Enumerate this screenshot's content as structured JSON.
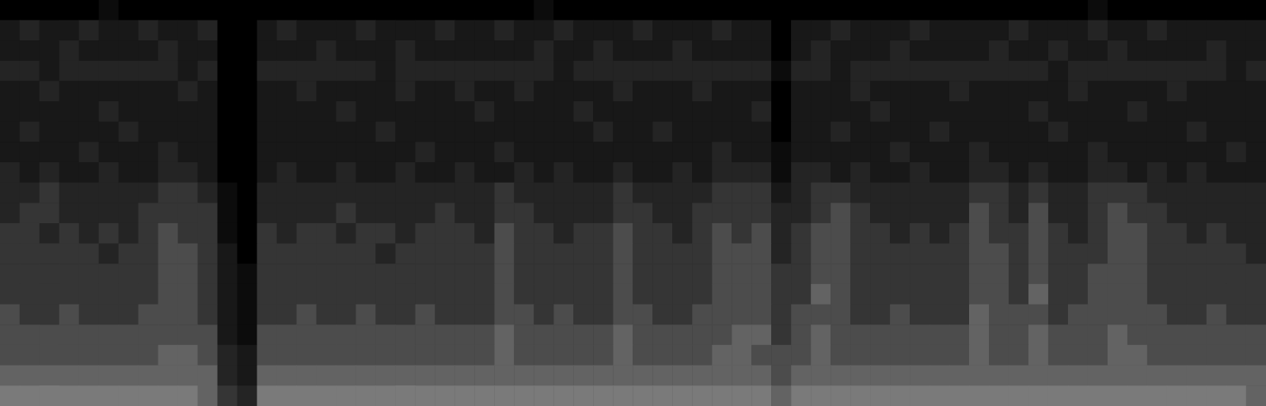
{
  "chart_data": {
    "type": "heatmap",
    "tick_labels": false,
    "cells": [
      [
        0,
        0,
        0,
        0,
        0,
        1,
        0,
        0,
        0,
        0,
        0,
        0,
        0,
        0,
        0,
        0,
        0,
        0,
        0,
        0,
        0,
        0,
        0,
        0,
        0,
        0,
        0,
        1,
        0,
        0,
        0,
        0,
        0,
        0,
        0,
        0,
        0,
        0,
        0,
        0,
        0,
        0,
        0,
        0,
        0,
        0,
        0,
        0,
        0,
        0,
        0,
        0,
        0,
        0,
        0,
        1,
        0,
        0,
        0,
        0,
        0,
        0,
        0,
        0
      ],
      [
        2,
        3,
        2,
        2,
        3,
        2,
        2,
        3,
        2,
        2,
        3,
        0,
        0,
        2,
        3,
        2,
        2,
        2,
        3,
        2,
        2,
        2,
        3,
        2,
        2,
        3,
        2,
        2,
        3,
        2,
        2,
        2,
        3,
        2,
        2,
        2,
        3,
        2,
        2,
        0,
        2,
        2,
        3,
        2,
        2,
        2,
        3,
        2,
        2,
        2,
        2,
        3,
        2,
        2,
        2,
        3,
        2,
        2,
        3,
        2,
        2,
        2,
        2,
        2
      ],
      [
        2,
        2,
        2,
        3,
        2,
        2,
        2,
        2,
        3,
        2,
        2,
        0,
        0,
        2,
        2,
        2,
        3,
        2,
        2,
        2,
        3,
        2,
        2,
        2,
        2,
        2,
        2,
        3,
        2,
        2,
        3,
        2,
        2,
        2,
        3,
        2,
        2,
        2,
        2,
        0,
        2,
        3,
        2,
        2,
        2,
        3,
        2,
        2,
        2,
        2,
        3,
        2,
        2,
        3,
        2,
        2,
        3,
        2,
        2,
        2,
        2,
        3,
        2,
        2
      ],
      [
        3,
        3,
        2,
        3,
        3,
        3,
        3,
        3,
        3,
        2,
        3,
        0,
        0,
        3,
        3,
        3,
        3,
        3,
        3,
        2,
        3,
        3,
        3,
        3,
        3,
        3,
        3,
        3,
        2,
        3,
        3,
        3,
        3,
        3,
        3,
        3,
        3,
        3,
        3,
        1,
        3,
        3,
        2,
        3,
        3,
        3,
        3,
        3,
        3,
        3,
        3,
        3,
        3,
        2,
        3,
        3,
        3,
        3,
        3,
        3,
        3,
        3,
        2,
        3
      ],
      [
        2,
        2,
        3,
        2,
        2,
        2,
        2,
        2,
        2,
        3,
        2,
        0,
        0,
        2,
        2,
        3,
        2,
        2,
        2,
        2,
        3,
        2,
        2,
        3,
        2,
        2,
        3,
        2,
        2,
        2,
        2,
        3,
        2,
        2,
        2,
        3,
        2,
        2,
        2,
        0,
        2,
        2,
        2,
        3,
        2,
        2,
        2,
        2,
        3,
        2,
        2,
        2,
        2,
        2,
        3,
        2,
        2,
        2,
        2,
        3,
        2,
        2,
        2,
        2
      ],
      [
        2,
        2,
        2,
        2,
        2,
        3,
        2,
        2,
        2,
        2,
        2,
        0,
        0,
        2,
        2,
        2,
        2,
        3,
        2,
        2,
        2,
        2,
        2,
        2,
        3,
        2,
        2,
        2,
        2,
        3,
        2,
        2,
        2,
        2,
        2,
        2,
        2,
        2,
        3,
        0,
        2,
        2,
        2,
        2,
        3,
        2,
        2,
        2,
        2,
        2,
        2,
        2,
        3,
        2,
        2,
        2,
        2,
        3,
        2,
        2,
        2,
        2,
        2,
        2
      ],
      [
        2,
        3,
        2,
        2,
        2,
        2,
        3,
        2,
        2,
        2,
        2,
        0,
        0,
        2,
        2,
        2,
        2,
        2,
        2,
        3,
        2,
        2,
        2,
        2,
        2,
        2,
        2,
        2,
        2,
        2,
        3,
        2,
        2,
        3,
        2,
        2,
        2,
        2,
        2,
        0,
        2,
        2,
        3,
        2,
        2,
        2,
        2,
        3,
        2,
        2,
        2,
        2,
        2,
        3,
        2,
        2,
        2,
        2,
        2,
        2,
        3,
        2,
        2,
        2
      ],
      [
        2,
        2,
        2,
        2,
        3,
        2,
        2,
        2,
        3,
        2,
        2,
        0,
        0,
        2,
        2,
        2,
        2,
        2,
        2,
        2,
        2,
        3,
        2,
        2,
        2,
        3,
        2,
        2,
        2,
        2,
        2,
        2,
        2,
        2,
        2,
        2,
        3,
        2,
        2,
        1,
        2,
        2,
        2,
        2,
        2,
        3,
        2,
        2,
        2,
        3,
        2,
        2,
        2,
        2,
        2,
        3,
        2,
        2,
        2,
        2,
        2,
        2,
        3,
        2
      ],
      [
        3,
        2,
        3,
        2,
        2,
        3,
        2,
        2,
        3,
        3,
        2,
        0,
        0,
        2,
        3,
        2,
        2,
        3,
        2,
        2,
        3,
        2,
        2,
        3,
        2,
        2,
        3,
        2,
        3,
        2,
        2,
        3,
        2,
        2,
        3,
        2,
        3,
        3,
        3,
        1,
        3,
        3,
        2,
        3,
        2,
        2,
        3,
        2,
        2,
        3,
        3,
        2,
        3,
        2,
        2,
        3,
        3,
        2,
        3,
        2,
        3,
        2,
        2,
        2
      ],
      [
        3,
        3,
        4,
        3,
        3,
        3,
        3,
        3,
        4,
        4,
        3,
        1,
        0,
        3,
        3,
        3,
        3,
        3,
        3,
        3,
        3,
        3,
        3,
        3,
        3,
        4,
        3,
        3,
        3,
        3,
        3,
        4,
        3,
        3,
        3,
        3,
        4,
        4,
        4,
        2,
        3,
        4,
        4,
        3,
        3,
        3,
        3,
        3,
        3,
        4,
        4,
        3,
        4,
        3,
        3,
        4,
        4,
        4,
        3,
        3,
        3,
        3,
        3,
        3
      ],
      [
        3,
        4,
        4,
        3,
        3,
        3,
        3,
        4,
        4,
        4,
        4,
        1,
        0,
        3,
        3,
        3,
        3,
        4,
        3,
        3,
        3,
        3,
        4,
        3,
        3,
        4,
        4,
        3,
        3,
        3,
        3,
        4,
        4,
        3,
        3,
        4,
        4,
        4,
        4,
        3,
        3,
        4,
        5,
        4,
        3,
        3,
        3,
        3,
        3,
        5,
        4,
        3,
        5,
        3,
        3,
        4,
        5,
        4,
        4,
        3,
        3,
        3,
        3,
        3
      ],
      [
        4,
        4,
        3,
        4,
        3,
        4,
        3,
        4,
        5,
        4,
        4,
        1,
        0,
        4,
        3,
        4,
        4,
        3,
        4,
        4,
        3,
        4,
        4,
        4,
        3,
        5,
        4,
        4,
        3,
        4,
        4,
        5,
        4,
        4,
        3,
        4,
        5,
        4,
        5,
        3,
        4,
        5,
        5,
        4,
        4,
        3,
        4,
        3,
        4,
        5,
        4,
        4,
        5,
        4,
        3,
        4,
        5,
        5,
        4,
        4,
        3,
        4,
        3,
        3
      ],
      [
        4,
        4,
        4,
        4,
        4,
        3,
        4,
        4,
        5,
        5,
        4,
        2,
        0,
        4,
        4,
        4,
        4,
        4,
        4,
        3,
        4,
        4,
        4,
        4,
        4,
        5,
        4,
        4,
        4,
        4,
        4,
        5,
        4,
        4,
        4,
        4,
        5,
        5,
        5,
        3,
        4,
        5,
        5,
        4,
        4,
        4,
        4,
        4,
        4,
        5,
        5,
        4,
        5,
        4,
        4,
        4,
        5,
        5,
        4,
        4,
        4,
        4,
        4,
        3
      ],
      [
        4,
        4,
        4,
        4,
        4,
        4,
        4,
        4,
        5,
        5,
        4,
        2,
        1,
        4,
        4,
        4,
        4,
        4,
        4,
        4,
        4,
        4,
        4,
        4,
        4,
        5,
        4,
        4,
        4,
        4,
        4,
        5,
        4,
        4,
        4,
        4,
        5,
        5,
        5,
        4,
        4,
        5,
        5,
        4,
        4,
        4,
        4,
        4,
        4,
        5,
        5,
        4,
        5,
        4,
        4,
        5,
        5,
        5,
        4,
        4,
        4,
        4,
        4,
        4
      ],
      [
        4,
        4,
        4,
        4,
        4,
        4,
        4,
        4,
        5,
        5,
        4,
        2,
        1,
        4,
        4,
        4,
        4,
        4,
        4,
        4,
        4,
        4,
        4,
        4,
        4,
        5,
        4,
        4,
        4,
        4,
        4,
        5,
        4,
        4,
        4,
        4,
        5,
        5,
        5,
        4,
        4,
        6,
        5,
        4,
        4,
        4,
        4,
        4,
        4,
        5,
        5,
        4,
        6,
        4,
        4,
        5,
        5,
        5,
        4,
        4,
        4,
        4,
        4,
        4
      ],
      [
        5,
        4,
        4,
        5,
        4,
        4,
        4,
        5,
        5,
        5,
        4,
        2,
        1,
        4,
        4,
        5,
        4,
        4,
        5,
        4,
        4,
        5,
        4,
        4,
        4,
        5,
        5,
        4,
        5,
        4,
        4,
        5,
        5,
        4,
        4,
        5,
        5,
        5,
        5,
        4,
        5,
        5,
        5,
        4,
        4,
        5,
        4,
        4,
        4,
        6,
        5,
        5,
        5,
        4,
        5,
        5,
        5,
        5,
        5,
        4,
        4,
        5,
        4,
        4
      ],
      [
        5,
        5,
        5,
        5,
        5,
        5,
        5,
        5,
        5,
        5,
        5,
        2,
        1,
        5,
        5,
        5,
        5,
        5,
        5,
        5,
        5,
        5,
        5,
        5,
        5,
        6,
        5,
        5,
        5,
        5,
        5,
        6,
        5,
        5,
        5,
        5,
        5,
        6,
        6,
        4,
        5,
        6,
        5,
        5,
        5,
        5,
        5,
        5,
        5,
        6,
        5,
        5,
        6,
        5,
        5,
        5,
        6,
        5,
        5,
        5,
        5,
        5,
        5,
        5
      ],
      [
        5,
        5,
        5,
        5,
        5,
        5,
        5,
        5,
        6,
        6,
        5,
        3,
        2,
        5,
        5,
        5,
        5,
        5,
        5,
        5,
        5,
        5,
        5,
        5,
        5,
        6,
        5,
        5,
        5,
        5,
        5,
        6,
        5,
        5,
        5,
        5,
        6,
        6,
        5,
        5,
        5,
        6,
        5,
        5,
        5,
        5,
        5,
        5,
        5,
        6,
        5,
        5,
        6,
        5,
        5,
        5,
        6,
        6,
        5,
        5,
        5,
        5,
        5,
        5
      ],
      [
        6,
        6,
        6,
        6,
        6,
        6,
        6,
        6,
        6,
        6,
        6,
        3,
        2,
        6,
        6,
        6,
        6,
        6,
        6,
        6,
        6,
        6,
        6,
        6,
        6,
        6,
        6,
        6,
        6,
        6,
        6,
        6,
        6,
        6,
        6,
        6,
        6,
        6,
        6,
        5,
        6,
        6,
        6,
        6,
        6,
        6,
        6,
        6,
        6,
        6,
        6,
        6,
        6,
        6,
        6,
        6,
        6,
        6,
        6,
        6,
        6,
        6,
        6,
        6
      ],
      [
        7,
        7,
        7,
        7,
        7,
        7,
        7,
        7,
        7,
        7,
        6,
        4,
        3,
        7,
        7,
        7,
        7,
        7,
        7,
        7,
        7,
        7,
        7,
        7,
        7,
        7,
        7,
        7,
        7,
        7,
        7,
        7,
        7,
        7,
        7,
        7,
        7,
        7,
        7,
        6,
        7,
        7,
        7,
        7,
        7,
        7,
        7,
        7,
        7,
        7,
        7,
        7,
        7,
        7,
        7,
        7,
        7,
        7,
        7,
        7,
        7,
        7,
        7,
        6
      ]
    ]
  }
}
